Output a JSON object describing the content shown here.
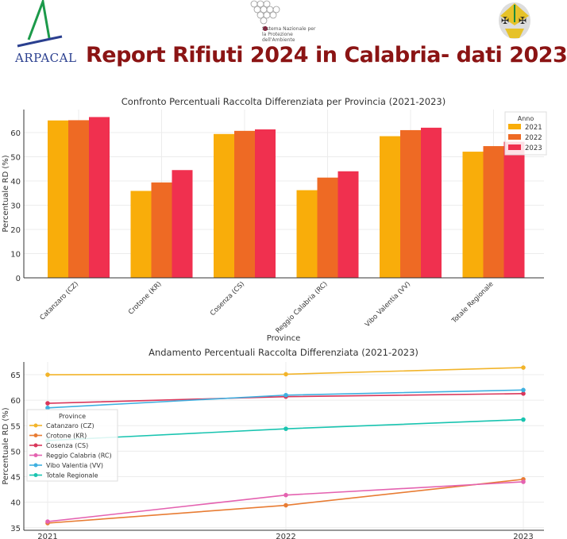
{
  "header": {
    "title": "Report Rifiuti 2024 in Calabria- dati 2023",
    "logo_left_text": "ARPACAL",
    "logo_center_text": "Sistema Nazionale per la Protezione dell'Ambiente",
    "logo_right": "regione-calabria-coat-of-arms"
  },
  "colors": {
    "title": "#8b1414",
    "y2021": "#f9ad0a",
    "y2022": "#ee6a24",
    "y2023": "#f0304f"
  },
  "chart_data": [
    {
      "type": "bar",
      "title": "Confronto Percentuali Raccolta Differenziata per Provincia (2021-2023)",
      "xlabel": "Province",
      "ylabel": "Percentuale RD (%)",
      "ylim": [
        0,
        69.5
      ],
      "yticks": [
        0,
        10,
        20,
        30,
        40,
        50,
        60
      ],
      "grid": true,
      "legend_title": "Anno",
      "legend_position": "top-right",
      "categories": [
        "Catanzaro (CZ)",
        "Crotone (KR)",
        "Cosenza (CS)",
        "Reggio Calabria (RC)",
        "Vibo Valentia (VV)",
        "Totale Regionale"
      ],
      "series": [
        {
          "name": "2021",
          "color": "#f9ad0a",
          "values": [
            65.0,
            35.9,
            59.4,
            36.2,
            58.5,
            52.1
          ]
        },
        {
          "name": "2022",
          "color": "#ee6a24",
          "values": [
            65.1,
            39.4,
            60.7,
            41.4,
            61.0,
            54.4
          ]
        },
        {
          "name": "2023",
          "color": "#f0304f",
          "values": [
            66.4,
            44.5,
            61.3,
            44.0,
            62.0,
            56.2
          ]
        }
      ]
    },
    {
      "type": "line",
      "title": "Andamento Percentuali Raccolta Differenziata (2021-2023)",
      "xlabel": "",
      "ylabel": "Percentuale RD (%)",
      "x": [
        "2021",
        "2022",
        "2023"
      ],
      "ylim": [
        34.5,
        67.5
      ],
      "yticks": [
        35,
        40,
        45,
        50,
        55,
        60,
        65
      ],
      "grid": true,
      "legend_title": "Province",
      "legend_position": "center-left",
      "series": [
        {
          "name": "Catanzaro (CZ)",
          "color": "#f2b42a",
          "values": [
            65.0,
            65.1,
            66.4
          ]
        },
        {
          "name": "Crotone (KR)",
          "color": "#e87c33",
          "values": [
            35.9,
            39.4,
            44.5
          ]
        },
        {
          "name": "Cosenza (CS)",
          "color": "#d9365a",
          "values": [
            59.4,
            60.7,
            61.3
          ]
        },
        {
          "name": "Reggio Calabria (RC)",
          "color": "#e462b0",
          "values": [
            36.2,
            41.4,
            44.0
          ]
        },
        {
          "name": "Vibo Valentia (VV)",
          "color": "#3fb0e0",
          "values": [
            58.5,
            61.0,
            62.0
          ]
        },
        {
          "name": "Totale Regionale",
          "color": "#19c4b0",
          "values": [
            52.1,
            54.4,
            56.2
          ]
        }
      ]
    }
  ]
}
